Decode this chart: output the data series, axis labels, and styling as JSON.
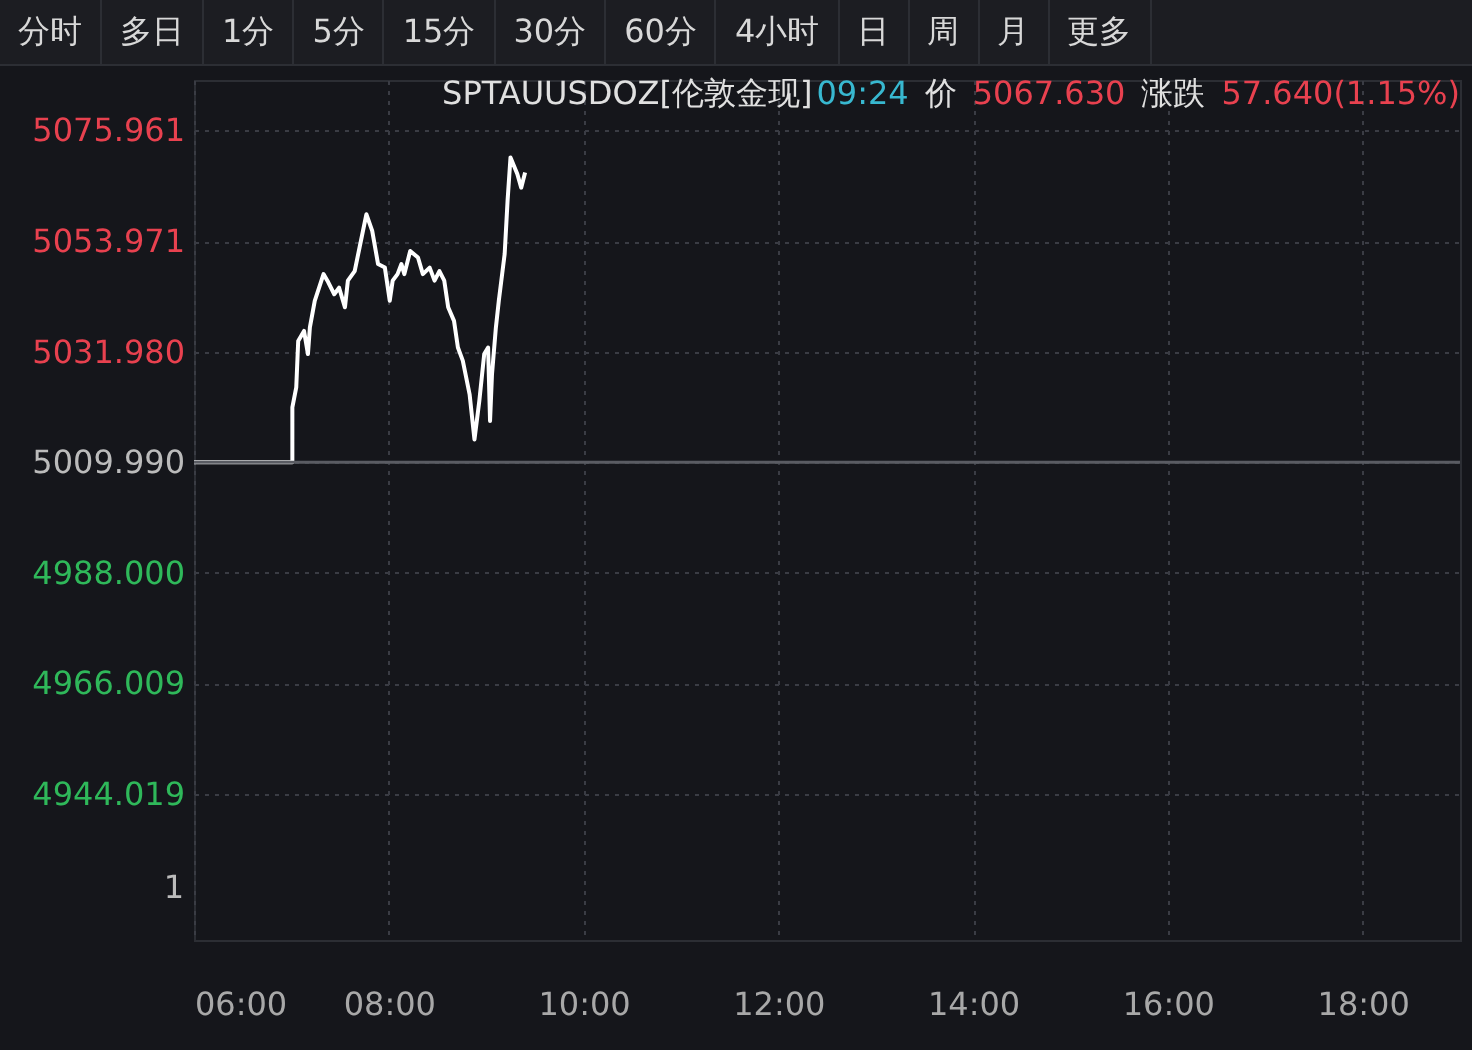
{
  "chart_data": {
    "type": "line",
    "title": "SPTAUUSDOZ[伦敦金现]",
    "annotations": [
      "分时 多日 1分 5分 15分 30分 60分 4小时 日 周 月 更多",
      "09:24",
      "价",
      "5067.630",
      "涨跌",
      "57.640(1.15%)",
      "1"
    ],
    "series": [
      {
        "color": "#ffffff",
        "x": [
          6,
          7.01,
          7.01,
          7.05,
          7.07,
          7.13,
          7.17,
          7.19,
          7.24,
          7.33,
          7.37,
          7.44,
          7.49,
          7.55,
          7.58,
          7.65,
          7.7,
          7.77,
          7.83,
          7.89,
          7.96,
          8.01,
          8.04,
          8.09,
          8.13,
          8.16,
          8.22,
          8.3,
          8.35,
          8.42,
          8.47,
          8.52,
          8.57,
          8.61,
          8.67,
          8.71,
          8.76,
          8.83,
          8.88,
          8.93,
          8.98,
          9.02,
          9.04,
          9.06,
          9.1,
          9.13,
          9.19,
          9.22,
          9.25,
          9.32,
          9.36,
          9.4
        ],
        "values": [
          5010,
          5010,
          5020.9,
          5024.9,
          5034.1,
          5036.1,
          5031.5,
          5036.8,
          5042.1,
          5047.4,
          5046.1,
          5043.4,
          5044.7,
          5040.8,
          5046.1,
          5048,
          5052.7,
          5059.3,
          5056,
          5049.4,
          5048.7,
          5042.1,
          5046.1,
          5047.4,
          5049.4,
          5047.4,
          5052,
          5050.7,
          5047.4,
          5048.7,
          5046.1,
          5048,
          5046.1,
          5040.8,
          5038.1,
          5032.8,
          5030.2,
          5023.5,
          5014.5,
          5022.2,
          5031.5,
          5032.8,
          5018.2,
          5027.5,
          5036.8,
          5042.1,
          5051.4,
          5062,
          5070.6,
          5067.3,
          5064.6,
          5067.6
        ]
      }
    ],
    "ref_lines": [
      {
        "axis": "y",
        "value": 5009.99,
        "color": "#5a5c63"
      }
    ],
    "xlim": [
      6,
      19
    ],
    "xticks": [
      {
        "value": 6,
        "label": "06:00"
      },
      {
        "value": 8,
        "label": "08:00"
      },
      {
        "value": 10,
        "label": "10:00"
      },
      {
        "value": 12,
        "label": "12:00"
      },
      {
        "value": 14,
        "label": "14:00"
      },
      {
        "value": 16,
        "label": "16:00"
      },
      {
        "value": 18,
        "label": "18:00"
      }
    ],
    "ylim": [
      4915,
      5086
    ],
    "yticks": [
      4944.019,
      4966.009,
      {
        "value": 4988,
        "label": "4988.000"
      },
      {
        "value": 5009.99,
        "label": "5009.990"
      },
      {
        "value": 5031.98,
        "label": "5031.980"
      },
      5053.971,
      5075.961
    ],
    "grid": true,
    "marker": "none",
    "line_style": "solid"
  }
}
